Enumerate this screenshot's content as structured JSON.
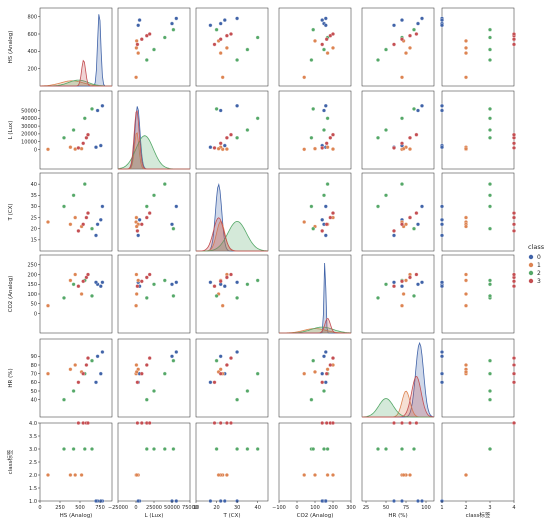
{
  "chart_data": {
    "type": "scatter",
    "kind": "pairplot",
    "variables": [
      "HS (Analog)",
      "L (Lux)",
      "T (CX)",
      "CO2 (Analog)",
      "HR (%)",
      "class"
    ],
    "x_axis_labels": [
      "HS (Analog)",
      "L (Lux)",
      "T (CX)",
      "CO2 (Analog)",
      "HR (%)",
      "class标签"
    ],
    "y_axis_labels": [
      "HS (Analog)",
      "L (Lux)",
      "T (CX)",
      "CO2 (Analog)",
      "HR (%)",
      "class标签"
    ],
    "diagonal": "kde",
    "legend": {
      "title": "class",
      "placement": "right",
      "entries": [
        {
          "label": "0",
          "color": "#4063a8"
        },
        {
          "label": "1",
          "color": "#dd8452"
        },
        {
          "label": "2",
          "color": "#55a868"
        },
        {
          "label": "3",
          "color": "#c44e52"
        }
      ]
    },
    "ranges": {
      "HS (Analog)": [
        0,
        900
      ],
      "L (Lux)": [
        -25000,
        75000
      ],
      "T (CX)": [
        10,
        45
      ],
      "CO2 (Analog)": [
        -100,
        300
      ],
      "HR (%)": [
        20,
        110
      ],
      "class": [
        1,
        4
      ]
    },
    "x_ticks": {
      "HS (Analog)": [
        0,
        250,
        500,
        750
      ],
      "L (Lux)": [
        -25000,
        0,
        25000,
        50000,
        75000
      ],
      "T (CX)": [
        10,
        20,
        30,
        40
      ],
      "CO2 (Analog)": [
        -100,
        0,
        100,
        200,
        300
      ],
      "HR (%)": [
        25,
        50,
        75,
        100
      ],
      "class": [
        1,
        2,
        3,
        4
      ]
    },
    "y_ticks": {
      "HS (Analog)": [
        200,
        400,
        600,
        800
      ],
      "L (Lux)": [
        0,
        10000,
        20000,
        30000,
        40000,
        50000
      ],
      "T (CX)": [
        15,
        20,
        25,
        30,
        35,
        40
      ],
      "CO2 (Analog)": [
        0,
        50,
        100,
        150,
        200,
        250
      ],
      "HR (%)": [
        40,
        50,
        60,
        70,
        80,
        90
      ],
      "class": [
        1.0,
        1.5,
        2.0,
        2.5,
        3.0,
        3.5,
        4.0
      ]
    },
    "x_tick_labels": {
      "HS (Analog)": [
        "0",
        "250",
        "500",
        "750"
      ],
      "L (Lux)": [
        "−25000",
        "0",
        "25000",
        "50000",
        "75000"
      ],
      "T (CX)": [
        "10",
        "20",
        "30",
        "40"
      ],
      "CO2 (Analog)": [
        "−100",
        "0",
        "100",
        "200",
        "300"
      ],
      "HR (%)": [
        "25",
        "50",
        "75",
        "100"
      ],
      "class": [
        "1",
        "2",
        "3",
        "4"
      ]
    },
    "y_tick_labels": {
      "HS (Analog)": [
        "200",
        "400",
        "600",
        "800"
      ],
      "L (Lux)": [
        "0",
        "10000",
        "20000",
        "30000",
        "40000",
        "50000"
      ],
      "T (CX)": [
        "15",
        "20",
        "25",
        "30",
        "35",
        "40"
      ],
      "CO2 (Analog)": [
        "0",
        "50",
        "100",
        "150",
        "200",
        "250"
      ],
      "HR (%)": [
        "40",
        "50",
        "60",
        "70",
        "80",
        "90"
      ],
      "class": [
        "1.0",
        "1.5",
        "2.0",
        "2.5",
        "3.0",
        "3.5",
        "4.0"
      ]
    },
    "classes": [
      {
        "name": "0",
        "color": "#4063a8",
        "HS": [
          720,
          780,
          760,
          700
        ],
        "L": [
          50000,
          56000,
          5000,
          3000
        ],
        "T": [
          22,
          30,
          24,
          17
        ],
        "CO2": [
          150,
          160,
          140,
          160
        ],
        "HR": [
          90,
          95,
          70,
          60
        ],
        "class": [
          1,
          1,
          1,
          1
        ],
        "kde": {
          "HS": {
            "mu": 740,
            "sd": 20,
            "w": 1.0
          },
          "L": {
            "mu": 2000,
            "sd": 3500,
            "w": 0.85
          },
          "T": {
            "mu": 21,
            "sd": 1.5,
            "w": 0.9
          },
          "CO2": {
            "mu": 155,
            "sd": 5,
            "w": 1.0
          },
          "HR": {
            "mu": 92,
            "sd": 5,
            "w": 1.0
          }
        }
      },
      {
        "name": "1",
        "color": "#dd8452",
        "HS": [
          100,
          380,
          440,
          520
        ],
        "L": [
          200,
          3000,
          500,
          1000
        ],
        "T": [
          23,
          22,
          25,
          21
        ],
        "CO2": [
          40,
          170,
          200,
          100
        ],
        "HR": [
          70,
          75,
          80,
          72
        ],
        "class": [
          2,
          2,
          2,
          2
        ],
        "kde": {
          "HS": {
            "mu": 400,
            "sd": 140,
            "w": 0.07
          },
          "L": {
            "mu": 1000,
            "sd": 3000,
            "w": 0.5
          },
          "T": {
            "mu": 22,
            "sd": 2,
            "w": 0.4
          },
          "CO2": {
            "mu": 100,
            "sd": 60,
            "w": 0.06
          },
          "HR": {
            "mu": 75,
            "sd": 5,
            "w": 0.35
          }
        }
      },
      {
        "name": "2",
        "color": "#55a868",
        "HS": [
          300,
          420,
          560,
          650
        ],
        "L": [
          15000,
          25000,
          40000,
          52000
        ],
        "T": [
          30,
          35,
          40,
          20
        ],
        "CO2": [
          80,
          150,
          170,
          90
        ],
        "HR": [
          40,
          50,
          70,
          85
        ],
        "class": [
          3,
          3,
          3,
          3
        ],
        "kde": {
          "HS": {
            "mu": 480,
            "sd": 120,
            "w": 0.08
          },
          "L": {
            "mu": 12000,
            "sd": 12000,
            "w": 0.45
          },
          "T": {
            "mu": 30,
            "sd": 4.5,
            "w": 0.4
          },
          "CO2": {
            "mu": 140,
            "sd": 60,
            "w": 0.08
          },
          "HR": {
            "mu": 50,
            "sd": 9,
            "w": 0.25
          }
        }
      },
      {
        "name": "3",
        "color": "#c44e52",
        "HS": [
          480,
          540,
          580,
          600
        ],
        "L": [
          2000,
          8000,
          15000,
          19000
        ],
        "T": [
          19,
          22,
          25,
          27
        ],
        "CO2": [
          140,
          165,
          185,
          200
        ],
        "HR": [
          60,
          70,
          80,
          88
        ],
        "class": [
          4,
          4,
          4,
          4
        ],
        "kde": {
          "HS": {
            "mu": 545,
            "sd": 25,
            "w": 0.35
          },
          "L": {
            "mu": 1000,
            "sd": 3500,
            "w": 0.8
          },
          "T": {
            "mu": 21,
            "sd": 2.5,
            "w": 0.45
          },
          "CO2": {
            "mu": 170,
            "sd": 15,
            "w": 0.2
          },
          "HR": {
            "mu": 88,
            "sd": 6,
            "w": 0.55
          }
        }
      }
    ]
  }
}
